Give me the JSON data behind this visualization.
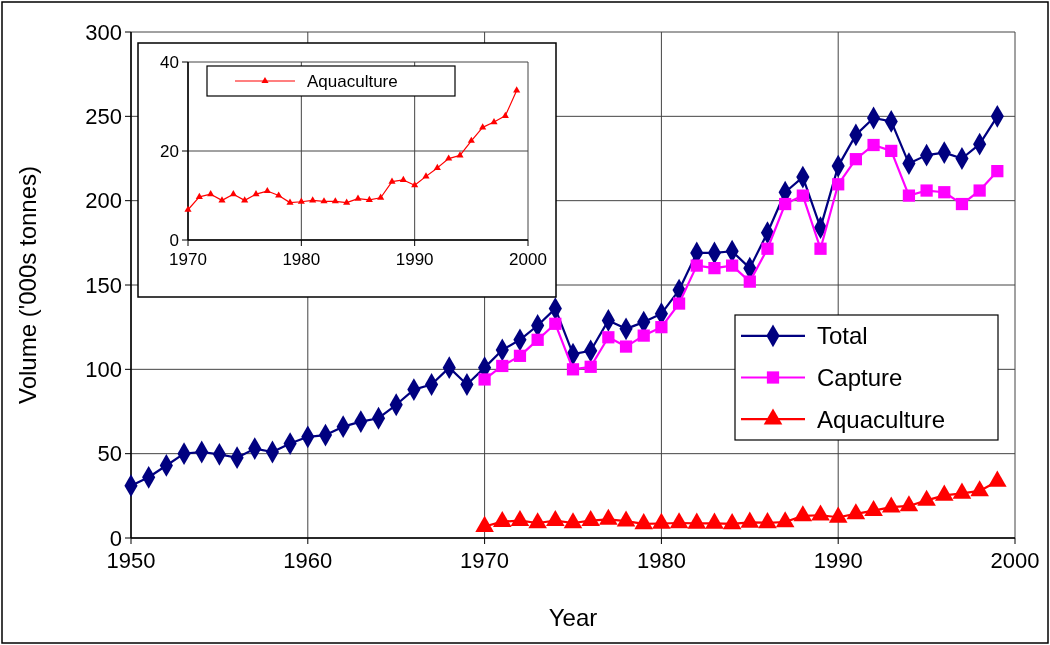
{
  "chart_data": [
    {
      "type": "line",
      "xlabel": "Year",
      "ylabel": "Volume ('000s tonnes)",
      "xlim": [
        1950,
        2000
      ],
      "ylim": [
        0,
        300
      ],
      "xticks": [
        1950,
        1960,
        1970,
        1980,
        1990,
        2000
      ],
      "yticks": [
        0,
        50,
        100,
        150,
        200,
        250,
        300
      ],
      "grid": true,
      "legend": "right",
      "series": [
        {
          "name": "Total",
          "color": "#000080",
          "marker": "diamond",
          "x": [
            1950,
            1951,
            1952,
            1953,
            1954,
            1955,
            1956,
            1957,
            1958,
            1959,
            1960,
            1961,
            1962,
            1963,
            1964,
            1965,
            1966,
            1967,
            1968,
            1969,
            1970,
            1971,
            1972,
            1973,
            1974,
            1975,
            1976,
            1977,
            1978,
            1979,
            1980,
            1981,
            1982,
            1983,
            1984,
            1985,
            1986,
            1987,
            1988,
            1989,
            1990,
            1991,
            1992,
            1993,
            1994,
            1995,
            1996,
            1997,
            1998,
            1999
          ],
          "values": [
            31,
            36,
            43,
            50,
            51,
            49.6,
            47.6,
            53,
            51,
            56,
            60,
            61,
            66,
            69,
            71,
            79,
            88,
            91,
            101,
            91,
            101,
            111.5,
            117.5,
            126,
            136,
            109,
            111,
            129,
            124,
            128,
            133,
            147,
            169,
            169,
            170,
            160,
            181,
            205,
            214,
            184,
            220.5,
            239,
            249,
            247,
            222,
            227,
            228.5,
            225,
            233.5,
            250
          ]
        },
        {
          "name": "Capture",
          "color": "#ff00ff",
          "marker": "square",
          "x": [
            1970,
            1971,
            1972,
            1973,
            1974,
            1975,
            1976,
            1977,
            1978,
            1979,
            1980,
            1981,
            1982,
            1983,
            1984,
            1985,
            1986,
            1987,
            1988,
            1989,
            1990,
            1991,
            1992,
            1993,
            1994,
            1995,
            1996,
            1997,
            1998,
            1999
          ],
          "values": [
            94,
            102,
            108,
            117.5,
            127,
            100,
            101.5,
            119,
            113.5,
            120,
            125,
            139,
            161.5,
            160,
            161.5,
            152,
            171.5,
            198,
            203,
            171.5,
            209.7,
            224.6,
            233,
            229.5,
            203,
            206,
            205,
            198,
            206,
            217.5
          ]
        },
        {
          "name": "Aquaculture",
          "color": "#ff0000",
          "marker": "triangle",
          "x": [
            1970,
            1971,
            1972,
            1973,
            1974,
            1975,
            1976,
            1977,
            1978,
            1979,
            1980,
            1981,
            1982,
            1983,
            1984,
            1985,
            1986,
            1987,
            1988,
            1989,
            1990,
            1991,
            1992,
            1993,
            1994,
            1995,
            1996,
            1997,
            1998,
            1999
          ],
          "values": [
            6.8,
            9.7,
            10.3,
            8.9,
            10.3,
            8.9,
            10.3,
            11,
            10,
            8.4,
            8.6,
            8.9,
            8.7,
            8.7,
            8.4,
            9.3,
            9,
            9.5,
            13.1,
            13.5,
            12.3,
            14.3,
            16.2,
            18.3,
            19,
            22.3,
            25.3,
            26.5,
            27.9,
            33.6
          ]
        }
      ]
    },
    {
      "type": "line",
      "xlim": [
        1970,
        2000
      ],
      "ylim": [
        0,
        40
      ],
      "xticks": [
        1970,
        1980,
        1990,
        2000
      ],
      "yticks": [
        0,
        20,
        40
      ],
      "grid": true,
      "legend": "top",
      "series": [
        {
          "name": "Aquaculture",
          "color": "#ff0000",
          "marker": "triangle",
          "x": [
            1970,
            1971,
            1972,
            1973,
            1974,
            1975,
            1976,
            1977,
            1978,
            1979,
            1980,
            1981,
            1982,
            1983,
            1984,
            1985,
            1986,
            1987,
            1988,
            1989,
            1990,
            1991,
            1992,
            1993,
            1994,
            1995,
            1996,
            1997,
            1998,
            1999
          ],
          "values": [
            6.8,
            9.7,
            10.3,
            8.9,
            10.3,
            8.9,
            10.3,
            11,
            10,
            8.4,
            8.6,
            8.9,
            8.7,
            8.7,
            8.4,
            9.3,
            9,
            9.5,
            13.1,
            13.5,
            12.3,
            14.3,
            16.2,
            18.3,
            19,
            22.3,
            25.3,
            26.5,
            27.9,
            33.6
          ]
        }
      ]
    }
  ]
}
